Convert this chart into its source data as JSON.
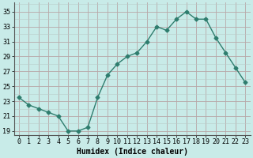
{
  "x": [
    0,
    1,
    2,
    3,
    4,
    5,
    6,
    7,
    8,
    9,
    10,
    11,
    12,
    13,
    14,
    15,
    16,
    17,
    18,
    19,
    20,
    21,
    22,
    23
  ],
  "y": [
    23.5,
    22.5,
    22.0,
    21.5,
    21.0,
    19.0,
    19.0,
    19.5,
    23.5,
    26.5,
    28.0,
    29.0,
    29.5,
    31.0,
    33.0,
    32.5,
    34.0,
    35.0,
    34.0,
    34.0,
    31.5,
    29.5,
    27.5,
    25.5
  ],
  "line_color": "#2e7d6e",
  "bg_color": "#c8ebe8",
  "grid_major_color": "#b8a8a8",
  "grid_minor_color": "#b8ccc8",
  "xlabel": "Humidex (Indice chaleur)",
  "yticks": [
    19,
    21,
    23,
    25,
    27,
    29,
    31,
    33,
    35
  ],
  "xticks": [
    0,
    1,
    2,
    3,
    4,
    5,
    6,
    7,
    8,
    9,
    10,
    11,
    12,
    13,
    14,
    15,
    16,
    17,
    18,
    19,
    20,
    21,
    22,
    23
  ],
  "ylim": [
    18.5,
    36.2
  ],
  "xlim": [
    -0.5,
    23.5
  ],
  "marker": "D",
  "markersize": 2.5,
  "linewidth": 1.0,
  "xlabel_fontsize": 7,
  "tick_fontsize": 6
}
